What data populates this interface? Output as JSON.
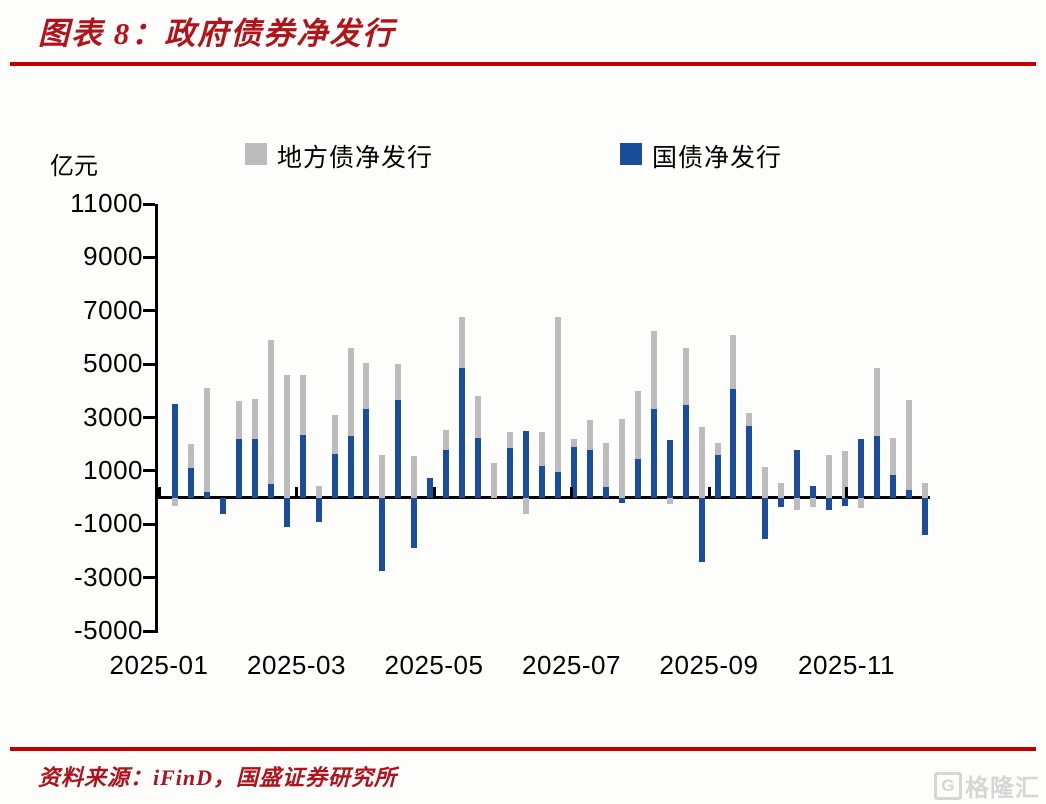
{
  "title": "图表 8：政府债券净发行",
  "colors": {
    "accent_red": "#c00000",
    "title_red": "#b21218",
    "bar_gray": "#bcbcbe",
    "bar_blue": "#1a4e9c",
    "watermark_gray": "#d6d6d6"
  },
  "legend": {
    "local_label": "地方债净发行",
    "treasury_label": "国债净发行"
  },
  "footer": {
    "source_text": "资料来源：iFinD，国盛证券研究所"
  },
  "watermark": {
    "icon": "G",
    "text": "格隆汇"
  },
  "chart_data": {
    "type": "bar",
    "title": "政府债券净发行",
    "unit_label": "亿元",
    "ylabel": "亿元",
    "xlabel": "",
    "ylim": [
      -5000,
      11000
    ],
    "y_ticks": [
      11000,
      9000,
      7000,
      5000,
      3000,
      1000,
      -1000,
      -3000,
      -5000
    ],
    "x_tick_labels": [
      "2025-01",
      "2025-03",
      "2025-05",
      "2025-07",
      "2025-09",
      "2025-11"
    ],
    "grid": false,
    "legend_position": "top",
    "frequency": "weekly",
    "series": [
      {
        "name": "地方债净发行",
        "color": "#bcbcbe",
        "values": [
          -300,
          2000,
          4100,
          0,
          3600,
          3700,
          5900,
          4600,
          4600,
          450,
          3100,
          5600,
          5050,
          1600,
          5000,
          1550,
          0,
          2550,
          6750,
          3800,
          1300,
          2450,
          -600,
          2475,
          6750,
          2200,
          2900,
          2050,
          2950,
          4000,
          6250,
          -250,
          5600,
          2650,
          2050,
          6100,
          3150,
          1150,
          550,
          -450,
          -350,
          1600,
          1750,
          -400,
          4850,
          2250,
          3650,
          550
        ]
      },
      {
        "name": "国债净发行",
        "color": "#1a4e9c",
        "values": [
          3500,
          1100,
          200,
          -600,
          2200,
          2200,
          500,
          -1100,
          2350,
          -900,
          1650,
          2300,
          3300,
          -2750,
          3650,
          -1900,
          750,
          1800,
          4850,
          2250,
          0,
          1850,
          2500,
          1175,
          950,
          1900,
          1800,
          400,
          -200,
          1450,
          3300,
          2150,
          3450,
          -2400,
          1600,
          4050,
          2700,
          -1550,
          -350,
          1800,
          450,
          -450,
          -300,
          2200,
          2300,
          850,
          300,
          -1400
        ]
      }
    ]
  }
}
